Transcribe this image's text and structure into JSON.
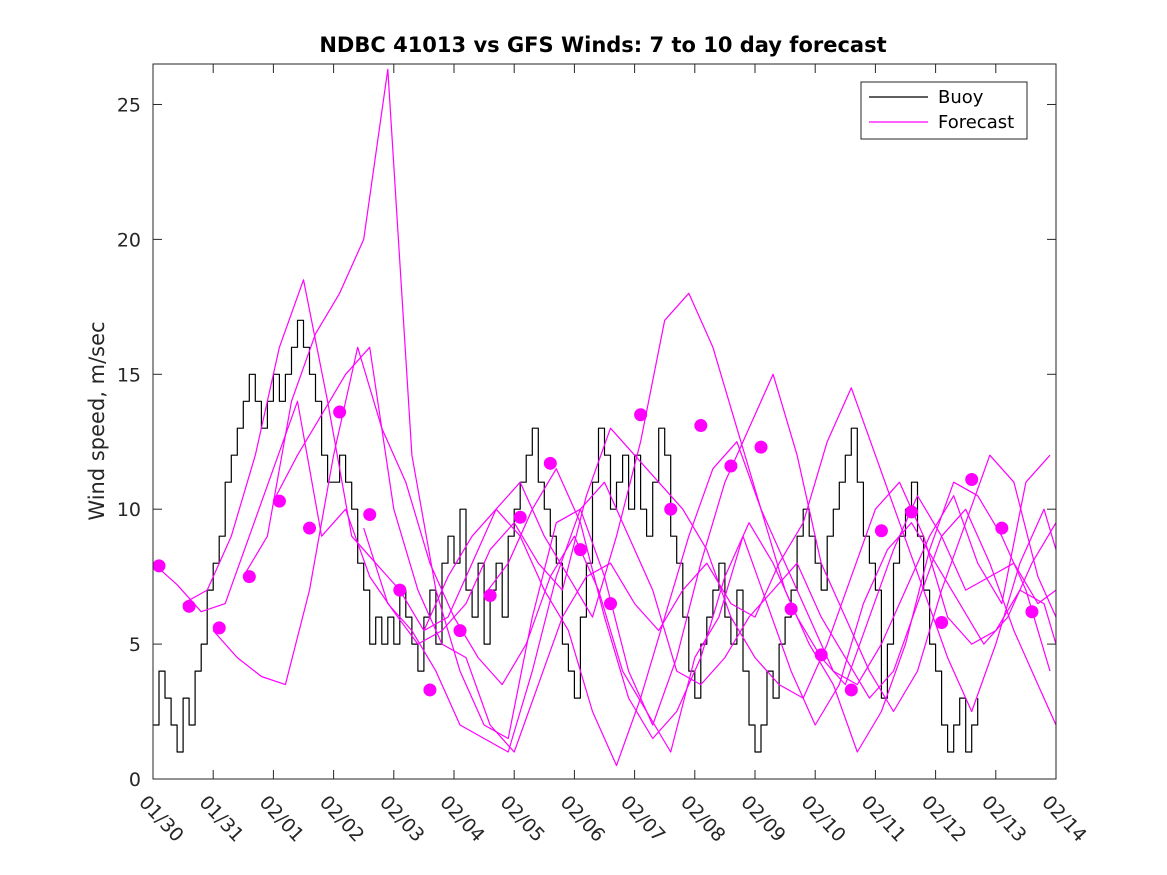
{
  "chart_data": {
    "type": "line",
    "title": "NDBC 41013 vs GFS Winds: 7 to 10 day forecast",
    "xlabel": "",
    "ylabel": "Wind speed, m/sec",
    "xlim": [
      0,
      15
    ],
    "ylim": [
      0,
      26.5
    ],
    "yticks": [
      0,
      5,
      10,
      15,
      20,
      25
    ],
    "xtick_labels": [
      "01/30",
      "01/31",
      "02/01",
      "02/02",
      "02/03",
      "02/04",
      "02/05",
      "02/06",
      "02/07",
      "02/08",
      "02/09",
      "02/10",
      "02/11",
      "02/12",
      "02/13",
      "02/14"
    ],
    "colors": {
      "buoy": "#000000",
      "forecast": "#ff00ff"
    },
    "legend": {
      "placement": "top-right",
      "entries": [
        "Buoy",
        "Forecast"
      ]
    },
    "series": [
      {
        "name": "Buoy",
        "x": [
          0,
          0.1,
          0.2,
          0.3,
          0.4,
          0.5,
          0.6,
          0.7,
          0.8,
          0.9,
          1.0,
          1.1,
          1.2,
          1.3,
          1.4,
          1.5,
          1.6,
          1.7,
          1.8,
          1.9,
          2.0,
          2.1,
          2.2,
          2.3,
          2.4,
          2.5,
          2.6,
          2.7,
          2.8,
          2.9,
          3.0,
          3.1,
          3.2,
          3.3,
          3.4,
          3.5,
          3.6,
          3.7,
          3.8,
          3.9,
          4.0,
          4.1,
          4.2,
          4.3,
          4.4,
          4.5,
          4.6,
          4.7,
          4.8,
          4.9,
          5.0,
          5.1,
          5.2,
          5.3,
          5.4,
          5.5,
          5.6,
          5.7,
          5.8,
          5.9,
          6.0,
          6.1,
          6.2,
          6.3,
          6.4,
          6.5,
          6.6,
          6.7,
          6.8,
          6.9,
          7.0,
          7.1,
          7.2,
          7.3,
          7.4,
          7.5,
          7.6,
          7.7,
          7.8,
          7.9,
          8.0,
          8.1,
          8.2,
          8.3,
          8.4,
          8.5,
          8.6,
          8.7,
          8.8,
          8.9,
          9.0,
          9.1,
          9.2,
          9.3,
          9.4,
          9.5,
          9.6,
          9.7,
          9.8,
          9.9,
          10.0,
          10.1,
          10.2,
          10.3,
          10.4,
          10.5,
          10.6,
          10.7,
          10.8,
          10.9,
          11.0,
          11.1,
          11.2,
          11.3,
          11.4,
          11.5,
          11.6,
          11.7,
          11.8,
          11.9,
          12.0,
          12.1,
          12.2,
          12.3,
          12.4,
          12.5,
          12.6,
          12.7,
          12.8,
          12.9,
          13.0,
          13.1,
          13.2,
          13.3,
          13.4,
          13.5,
          13.6,
          13.7
        ],
        "y": [
          2,
          4,
          3,
          2,
          1,
          3,
          2,
          4,
          5,
          7,
          8,
          9,
          11,
          12,
          13,
          14,
          15,
          14,
          13,
          14,
          15,
          14,
          15,
          16,
          17,
          16,
          15,
          14,
          12,
          11,
          11,
          12,
          11,
          10,
          8,
          7,
          5,
          6,
          5,
          6,
          5,
          7,
          6,
          5,
          4,
          6,
          7,
          5,
          8,
          9,
          8,
          10,
          7,
          6,
          8,
          5,
          7,
          8,
          6,
          9,
          10,
          11,
          12,
          13,
          11,
          10,
          9,
          8,
          5,
          4,
          3,
          6,
          8,
          11,
          13,
          12,
          10,
          11,
          12,
          10,
          12,
          10,
          9,
          11,
          13,
          12,
          9,
          8,
          6,
          4,
          3,
          5,
          6,
          7,
          8,
          6,
          5,
          7,
          4,
          2,
          1,
          2,
          4,
          3,
          5,
          6,
          7,
          9,
          10,
          9,
          8,
          7,
          9,
          10,
          11,
          12,
          13,
          11,
          9,
          8,
          7,
          3,
          5,
          8,
          9,
          10,
          11,
          9,
          7,
          5,
          4,
          2,
          1,
          2,
          3,
          1,
          2,
          3
        ]
      },
      {
        "name": "Forecast 1",
        "x": [
          0,
          0.4,
          0.8,
          1.2,
          1.6,
          2.0,
          2.4,
          2.8,
          3.2,
          3.6,
          4.0,
          4.4,
          4.8,
          5.2,
          5.6,
          6.0,
          6.4,
          6.8,
          7.2,
          7.6,
          8.0,
          8.4,
          8.8,
          9.2,
          9.6,
          10.0,
          10.4,
          10.8,
          11.2,
          11.6,
          12.0,
          12.4,
          12.8,
          13.2,
          13.6,
          14.0,
          14.4,
          14.8,
          15.0
        ],
        "y": [
          8,
          7.2,
          6.2,
          6.5,
          9,
          11.5,
          14,
          9,
          10,
          7.5,
          6.2,
          5,
          5.5,
          6.5,
          8.5,
          9.5,
          8,
          7,
          10.5,
          13,
          12,
          11,
          10,
          8.5,
          6,
          4.5,
          3.5,
          3,
          5,
          7.5,
          10,
          11,
          9,
          6,
          5,
          5.5,
          7,
          6.5,
          5
        ]
      },
      {
        "name": "Forecast 2",
        "x": [
          0.5,
          0.9,
          1.3,
          1.7,
          2.1,
          2.5,
          2.9,
          3.3,
          3.7,
          4.1,
          4.5,
          4.9,
          5.3,
          5.7,
          6.1,
          6.5,
          6.9,
          7.3,
          7.7,
          8.1,
          8.5,
          8.9,
          9.3,
          9.7,
          10.1,
          10.5,
          10.9,
          11.3,
          11.7,
          12.1,
          12.5,
          12.9,
          13.3,
          13.7,
          14.1,
          14.5,
          14.9
        ],
        "y": [
          6.5,
          7,
          9,
          12,
          16,
          18.5,
          14,
          9,
          8,
          7,
          5.5,
          6,
          8,
          10,
          11,
          9,
          7.5,
          6,
          9,
          12.5,
          17,
          18,
          16,
          13,
          10,
          8,
          6,
          4,
          3.5,
          5,
          7,
          9,
          10.5,
          8,
          6.5,
          11,
          12
        ]
      },
      {
        "name": "Forecast 3",
        "x": [
          1.0,
          1.4,
          1.8,
          2.2,
          2.6,
          3.0,
          3.4,
          3.8,
          4.2,
          4.6,
          5.0,
          5.4,
          5.8,
          6.2,
          6.6,
          7.0,
          7.4,
          7.8,
          8.2,
          8.6,
          9.0,
          9.4,
          9.8,
          10.2,
          10.6,
          11.0,
          11.4,
          11.8,
          12.2,
          12.6,
          13.0,
          13.4,
          13.8,
          14.2,
          14.6,
          15.0
        ],
        "y": [
          5.5,
          4.5,
          3.8,
          3.5,
          7,
          12,
          16,
          13,
          11,
          8,
          6,
          4.5,
          3.5,
          5,
          7.5,
          9,
          7,
          4,
          2.5,
          1,
          4.5,
          6,
          9,
          6.5,
          4,
          2,
          3.5,
          6.5,
          8.5,
          9.5,
          8,
          6.5,
          5,
          6,
          8,
          9.5
        ]
      },
      {
        "name": "Forecast 4",
        "x": [
          1.5,
          1.9,
          2.3,
          2.7,
          3.1,
          3.5,
          3.9,
          4.3,
          4.7,
          5.1,
          5.5,
          5.9,
          6.3,
          6.7,
          7.1,
          7.5,
          7.9,
          8.3,
          8.7,
          9.1,
          9.5,
          9.9,
          10.3,
          10.7,
          11.1,
          11.5,
          11.9,
          12.3,
          12.7,
          13.1,
          13.5,
          13.9,
          14.3,
          14.7,
          15.0
        ],
        "y": [
          7.5,
          9,
          14,
          16.5,
          18,
          20,
          26.3,
          12,
          7,
          4,
          2,
          1.5,
          6,
          9.5,
          10,
          7.5,
          4,
          2,
          4.5,
          8,
          11,
          13,
          15,
          12,
          8,
          6,
          4,
          2.5,
          4,
          7,
          9.5,
          12,
          11,
          7.5,
          6
        ]
      },
      {
        "name": "Forecast 5",
        "x": [
          2.0,
          2.4,
          2.8,
          3.2,
          3.6,
          4.0,
          4.4,
          4.8,
          5.2,
          5.6,
          6.0,
          6.4,
          6.8,
          7.2,
          7.6,
          8.0,
          8.4,
          8.8,
          9.2,
          9.6,
          10.0,
          10.4,
          10.8,
          11.2,
          11.6,
          12.0,
          12.4,
          12.8,
          13.2,
          13.6,
          14.0,
          14.4,
          14.8,
          15.0
        ],
        "y": [
          10.3,
          12,
          13.5,
          15,
          16,
          10,
          7,
          5,
          4.5,
          2,
          1,
          3.5,
          6,
          7.5,
          8,
          6.5,
          5.5,
          7,
          8,
          6.5,
          6,
          8,
          9.5,
          12.5,
          14.5,
          12,
          9.5,
          7,
          4.5,
          2.5,
          5,
          8,
          10,
          8.5
        ]
      },
      {
        "name": "Forecast 6",
        "x": [
          3.5,
          3.9,
          4.3,
          4.7,
          5.1,
          5.5,
          5.9,
          6.3,
          6.7,
          7.1,
          7.5,
          7.9,
          8.3,
          8.7,
          9.1,
          9.5,
          9.9,
          10.3,
          10.7,
          11.1,
          11.5,
          11.9,
          12.3,
          12.7,
          13.1,
          13.5,
          13.9,
          14.3,
          14.7,
          15.0
        ],
        "y": [
          9.3,
          6.5,
          5.5,
          4,
          2,
          1.5,
          1,
          4,
          7.5,
          10,
          11,
          9,
          7,
          4,
          3.5,
          4.5,
          6,
          7,
          8,
          6,
          4.5,
          3,
          4,
          6.5,
          9,
          10,
          8,
          5.5,
          3.5,
          2
        ]
      },
      {
        "name": "Forecast 7",
        "x": [
          4.5,
          4.9,
          5.3,
          5.7,
          6.1,
          6.5,
          6.9,
          7.3,
          7.7,
          8.1,
          8.5,
          8.9,
          9.3,
          9.7,
          10.1,
          10.5,
          10.9,
          11.3,
          11.7,
          12.1,
          12.5,
          12.9,
          13.3,
          13.7,
          14.1,
          14.5,
          14.9
        ],
        "y": [
          5.5,
          7.5,
          9,
          10,
          9,
          7,
          5.5,
          2.5,
          0.5,
          3,
          6,
          9,
          11.5,
          12.5,
          10,
          7,
          5,
          3.5,
          1,
          2.5,
          5,
          8.5,
          11,
          10.5,
          9,
          7,
          4
        ]
      },
      {
        "name": "Forecast 8",
        "x": [
          5.5,
          5.9,
          6.3,
          6.7,
          7.1,
          7.5,
          7.9,
          8.3,
          8.7,
          9.1,
          9.5,
          9.9,
          10.3,
          10.7,
          11.1,
          11.5,
          11.9,
          12.3,
          12.7,
          13.1,
          13.5,
          13.9,
          14.3,
          14.7,
          15.0
        ],
        "y": [
          6.8,
          8,
          10,
          11.5,
          9.5,
          6,
          3,
          1.5,
          2.5,
          4.5,
          7.5,
          9.5,
          8,
          6,
          4.5,
          3.5,
          6,
          8.5,
          10.5,
          9,
          7,
          7.5,
          8,
          6.5,
          7
        ]
      }
    ],
    "markers": {
      "name": "Forecast markers",
      "x": [
        0.1,
        0.6,
        1.1,
        1.6,
        2.1,
        2.6,
        3.1,
        3.6,
        4.1,
        4.6,
        5.1,
        5.6,
        6.1,
        6.6,
        7.1,
        7.6,
        8.1,
        8.6,
        9.1,
        9.6,
        10.1,
        10.6,
        11.1,
        11.6,
        12.1,
        12.6,
        13.1,
        13.6,
        14.1,
        14.6
      ],
      "y": [
        7.9,
        6.4,
        5.6,
        7.5,
        10.3,
        9.3,
        13.6,
        9.8,
        7.0,
        3.3,
        5.5,
        6.8,
        9.7,
        11.7,
        8.5,
        6.5,
        13.5,
        10.0,
        13.1,
        11.6,
        12.3,
        6.3,
        4.6,
        3.3,
        9.2,
        9.9,
        5.8,
        11.1,
        9.3,
        6.2
      ]
    }
  }
}
